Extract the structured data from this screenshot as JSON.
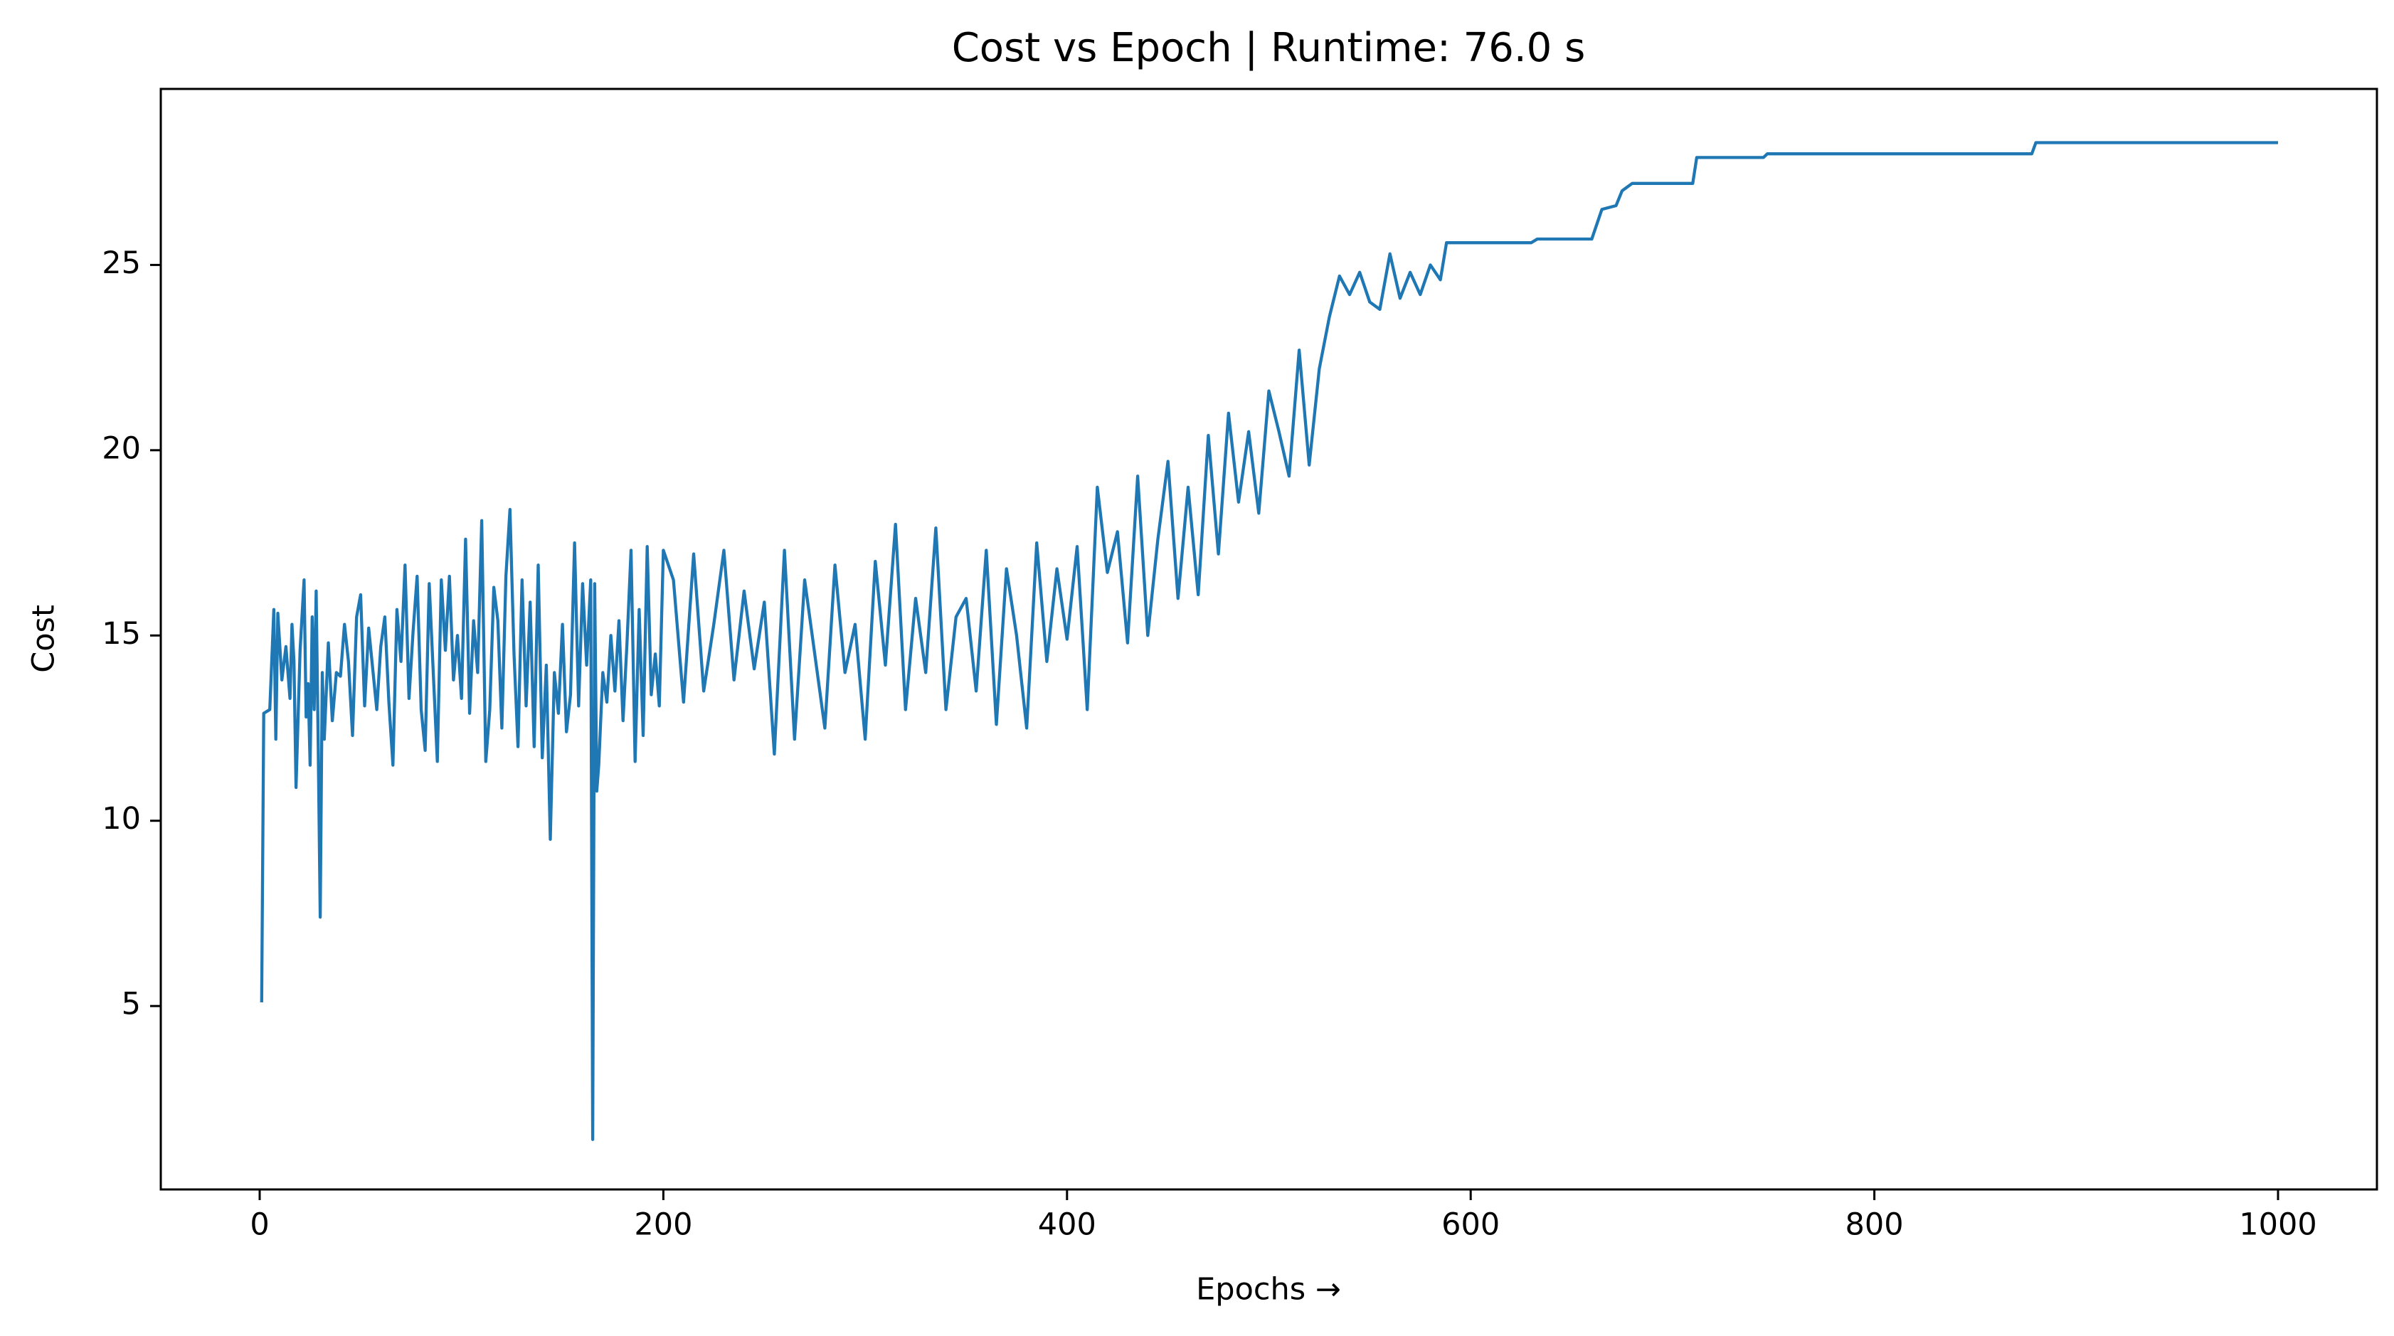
{
  "chart_data": {
    "type": "line",
    "title": "Cost vs Epoch | Runtime: 76.0 s",
    "x_label": "Epochs  →",
    "y_label": "Cost",
    "xlim": [
      -49,
      1049
    ],
    "xticks": [
      0,
      200,
      400,
      600,
      800,
      1000
    ],
    "ylim": [
      0.05,
      29.75
    ],
    "yticks": [
      5,
      10,
      15,
      20,
      25
    ],
    "grid": false,
    "series": [
      {
        "color": "#1f77b4",
        "x": [
          1,
          2,
          5,
          7,
          8,
          9,
          11,
          13,
          15,
          16,
          17,
          18,
          20,
          22,
          23,
          24,
          25,
          26,
          27,
          28,
          29,
          30,
          31,
          32,
          34,
          36,
          38,
          40,
          42,
          44,
          46,
          48,
          50,
          52,
          54,
          56,
          58,
          60,
          62,
          64,
          66,
          68,
          70,
          72,
          74,
          76,
          78,
          80,
          82,
          84,
          86,
          88,
          90,
          92,
          94,
          96,
          98,
          100,
          102,
          104,
          106,
          108,
          110,
          112,
          114,
          116,
          118,
          120,
          122,
          124,
          126,
          128,
          130,
          132,
          134,
          136,
          138,
          140,
          142,
          144,
          146,
          148,
          150,
          152,
          154,
          156,
          158,
          160,
          162,
          164,
          165,
          166,
          167,
          168,
          170,
          172,
          174,
          176,
          178,
          180,
          182,
          184,
          186,
          188,
          190,
          192,
          194,
          196,
          198,
          200,
          205,
          210,
          215,
          220,
          225,
          230,
          235,
          240,
          245,
          250,
          255,
          260,
          265,
          270,
          275,
          280,
          285,
          290,
          295,
          300,
          305,
          310,
          315,
          320,
          325,
          330,
          335,
          340,
          345,
          350,
          355,
          360,
          365,
          370,
          375,
          380,
          385,
          390,
          395,
          400,
          405,
          410,
          415,
          420,
          425,
          430,
          435,
          440,
          445,
          450,
          455,
          460,
          465,
          470,
          475,
          480,
          485,
          490,
          495,
          500,
          505,
          510,
          515,
          520,
          525,
          530,
          535,
          540,
          545,
          550,
          555,
          560,
          565,
          570,
          575,
          580,
          585,
          588,
          630,
          633,
          660,
          665,
          672,
          675,
          680,
          710,
          712,
          745,
          747,
          878,
          880,
          1000
        ],
        "values": [
          5.1,
          12.9,
          13.0,
          15.7,
          12.2,
          15.6,
          13.8,
          14.7,
          13.3,
          15.3,
          14.3,
          10.9,
          14.6,
          16.5,
          12.8,
          13.7,
          11.5,
          15.5,
          13.0,
          16.2,
          12.0,
          7.4,
          14.0,
          12.2,
          14.8,
          12.7,
          14.0,
          13.9,
          15.3,
          14.3,
          12.3,
          15.5,
          16.1,
          13.1,
          15.2,
          14.1,
          13.0,
          14.7,
          15.5,
          13.2,
          11.5,
          15.7,
          14.3,
          16.9,
          13.3,
          15.1,
          16.6,
          13.0,
          11.9,
          16.4,
          14.0,
          11.6,
          16.5,
          14.6,
          16.6,
          13.8,
          15.0,
          13.3,
          17.6,
          12.9,
          15.4,
          14.0,
          18.1,
          11.6,
          13.0,
          16.3,
          15.4,
          12.5,
          16.6,
          18.4,
          14.5,
          12.0,
          16.5,
          13.1,
          15.9,
          12.0,
          16.9,
          11.7,
          14.2,
          9.5,
          14.0,
          12.9,
          15.3,
          12.4,
          13.4,
          17.5,
          13.1,
          16.4,
          14.2,
          16.5,
          1.4,
          16.4,
          10.8,
          11.5,
          14.0,
          13.2,
          15.0,
          13.5,
          15.4,
          12.7,
          14.8,
          17.3,
          11.6,
          15.7,
          12.3,
          17.4,
          13.4,
          14.5,
          13.1,
          17.3,
          16.5,
          13.2,
          17.2,
          13.5,
          15.3,
          17.3,
          13.8,
          16.2,
          14.1,
          15.9,
          11.8,
          17.3,
          12.2,
          16.5,
          14.5,
          12.5,
          16.9,
          14.0,
          15.3,
          12.2,
          17.0,
          14.2,
          18.0,
          13.0,
          16.0,
          14.0,
          17.9,
          13.0,
          15.5,
          16.0,
          13.5,
          17.3,
          12.6,
          16.8,
          15.0,
          12.5,
          17.5,
          14.3,
          16.8,
          14.9,
          17.4,
          13.0,
          19.0,
          16.7,
          17.8,
          14.8,
          19.3,
          15.0,
          17.6,
          19.7,
          16.0,
          19.0,
          16.1,
          20.4,
          17.2,
          21.0,
          18.6,
          20.5,
          18.3,
          21.6,
          20.5,
          19.3,
          22.7,
          19.6,
          22.2,
          23.6,
          24.7,
          24.2,
          24.8,
          24.0,
          23.8,
          25.3,
          24.1,
          24.8,
          24.2,
          25.0,
          24.6,
          25.6,
          25.6,
          25.7,
          25.7,
          26.5,
          26.6,
          27.0,
          27.2,
          27.2,
          27.9,
          27.9,
          28.0,
          28.0,
          28.3,
          28.3
        ]
      }
    ]
  }
}
